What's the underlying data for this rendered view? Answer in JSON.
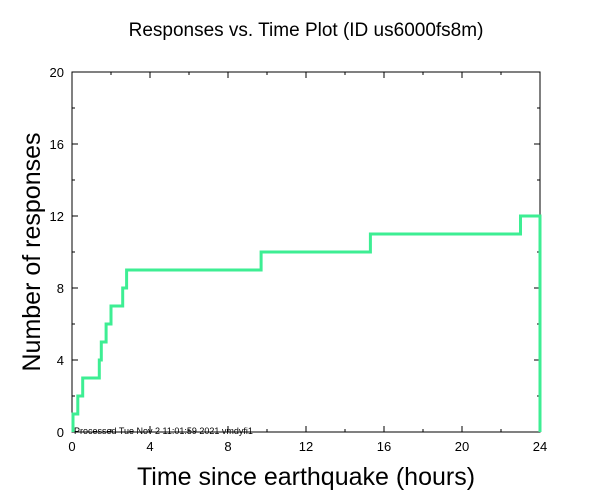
{
  "chart_data": {
    "type": "line",
    "title": "Responses vs. Time Plot (ID us6000fs8m)",
    "xlabel": "Time since earthquake (hours)",
    "ylabel": "Number of responses",
    "xlim": [
      0,
      24
    ],
    "ylim": [
      0,
      20
    ],
    "xticks": [
      0,
      4,
      8,
      12,
      16,
      20,
      24
    ],
    "yticks": [
      0,
      4,
      8,
      12,
      16,
      20
    ],
    "grid": false,
    "line_color": "#3dee93",
    "series": [
      {
        "step": "post",
        "x": [
          0.05,
          0.3,
          0.55,
          0.8,
          1.4,
          1.5,
          1.75,
          2.0,
          2.6,
          2.8,
          9.7,
          15.3,
          23.0,
          24.0,
          24.0
        ],
        "y": [
          1,
          2,
          3,
          3,
          4,
          5,
          6,
          7,
          8,
          9,
          10,
          11,
          12,
          12,
          0
        ]
      }
    ],
    "footnote": "Processed Tue Nov  2 11:01:59 2021 vmdyfi1"
  }
}
